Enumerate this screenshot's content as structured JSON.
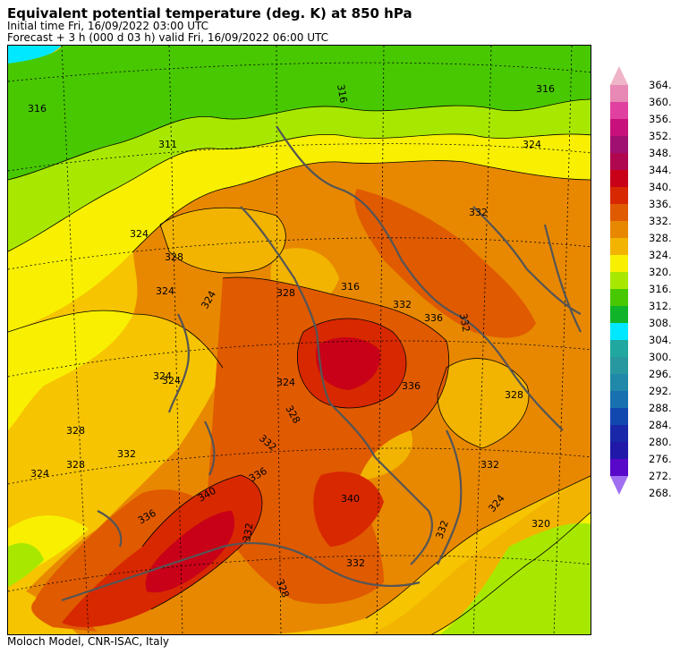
{
  "header": {
    "title": "Equivalent potential temperature (deg. K) at 850 hPa",
    "initial_time": "Initial time  Fri, 16/09/2022  03:00 UTC",
    "forecast": "Forecast  +   3 h  (000 d 03 h)  valid Fri, 16/09/2022 06:00 UTC"
  },
  "footer": {
    "credit": "Moloch Model, CNR-ISAC, Italy"
  },
  "map": {
    "field": "equivalent potential temperature",
    "level": "850 hPa",
    "contour_labels": [
      "316",
      "311",
      "316",
      "316",
      "324",
      "324",
      "328",
      "324",
      "324",
      "324",
      "316",
      "328",
      "332",
      "336",
      "332",
      "332",
      "336",
      "328",
      "324",
      "324",
      "332",
      "328",
      "332",
      "340",
      "340",
      "336",
      "332",
      "328",
      "332",
      "336",
      "332",
      "324",
      "320",
      "328",
      "328",
      "324",
      "332"
    ]
  },
  "colorbar": {
    "levels": [
      "364.",
      "360.",
      "356.",
      "352.",
      "348.",
      "344.",
      "340.",
      "336.",
      "332.",
      "328.",
      "324.",
      "320.",
      "316.",
      "312.",
      "308.",
      "304.",
      "300.",
      "296.",
      "292.",
      "288.",
      "284.",
      "280.",
      "276.",
      "272.",
      "268."
    ],
    "colors": [
      "#f0b4c8",
      "#e888b4",
      "#e040a0",
      "#c8107c",
      "#a01070",
      "#b00850",
      "#c80018",
      "#d82800",
      "#e05a00",
      "#e88800",
      "#f2b400",
      "#f8f000",
      "#a8e800",
      "#48c800",
      "#10b428",
      "#00e8ff",
      "#20a8a0",
      "#2898a0",
      "#2088a8",
      "#1870b0",
      "#1048b0",
      "#1828a8",
      "#2018a8",
      "#5808c8",
      "#a070f0"
    ]
  }
}
